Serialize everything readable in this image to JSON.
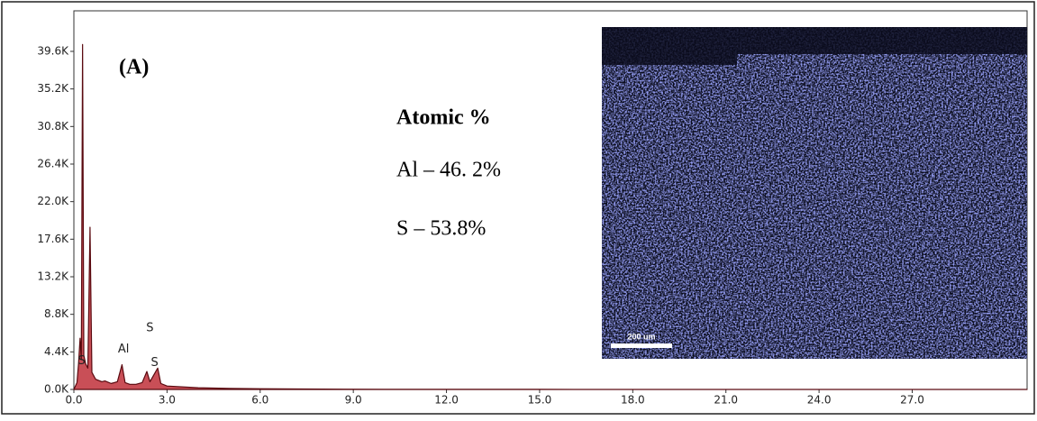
{
  "chart_data": {
    "type": "area",
    "panel_label": "(A)",
    "text_block": {
      "title": "Atomic %",
      "lines": [
        "Al – 46. 2%",
        "S – 53.8%"
      ]
    },
    "inset": {
      "scale_bar": "200 um"
    },
    "color": "#c0303a",
    "line_color": "#5a0a10",
    "x": [
      0,
      0.1,
      0.15,
      0.2,
      0.24,
      0.28,
      0.32,
      0.38,
      0.45,
      0.52,
      0.58,
      0.7,
      0.9,
      1.0,
      1.2,
      1.4,
      1.55,
      1.65,
      1.8,
      2.0,
      2.2,
      2.35,
      2.45,
      2.7,
      2.8,
      3.0,
      4.0,
      5.0,
      6.0,
      8.0,
      10,
      15,
      20,
      30.7
    ],
    "values": [
      0,
      800,
      3000,
      6000,
      3500,
      40400,
      4000,
      3000,
      2500,
      19000,
      2000,
      1200,
      900,
      1000,
      700,
      900,
      2900,
      800,
      600,
      600,
      800,
      2100,
      900,
      2500,
      700,
      400,
      200,
      120,
      80,
      40,
      20,
      10,
      5,
      0
    ],
    "annotations": [
      {
        "text": "S",
        "x": 0.25,
        "y": 3300
      },
      {
        "text": "Al",
        "x": 1.6,
        "y": 4700
      },
      {
        "text": "S",
        "x": 2.45,
        "y": 7200
      },
      {
        "text": "S",
        "x": 2.6,
        "y": 3100
      }
    ],
    "xlim": [
      0,
      30.7
    ],
    "ylim": [
      0,
      44350
    ],
    "xticks": [
      {
        "value": 0,
        "label": "0.0"
      },
      {
        "value": 3,
        "label": "3.0"
      },
      {
        "value": 6,
        "label": "6.0"
      },
      {
        "value": 9,
        "label": "9.0"
      },
      {
        "value": 12,
        "label": "12.0"
      },
      {
        "value": 15,
        "label": "15.0"
      },
      {
        "value": 18,
        "label": "18.0"
      },
      {
        "value": 21,
        "label": "21.0"
      },
      {
        "value": 24,
        "label": "24.0"
      },
      {
        "value": 27,
        "label": "27.0"
      }
    ],
    "yticks": [
      {
        "value": 0,
        "label": "0.0K"
      },
      {
        "value": 4400,
        "label": "4.4K"
      },
      {
        "value": 8800,
        "label": "8.8K"
      },
      {
        "value": 13200,
        "label": "13.2K"
      },
      {
        "value": 17600,
        "label": "17.6K"
      },
      {
        "value": 22000,
        "label": "22.0K"
      },
      {
        "value": 26400,
        "label": "26.4K"
      },
      {
        "value": 30800,
        "label": "30.8K"
      },
      {
        "value": 35200,
        "label": "35.2K"
      },
      {
        "value": 39600,
        "label": "39.6K"
      }
    ]
  }
}
